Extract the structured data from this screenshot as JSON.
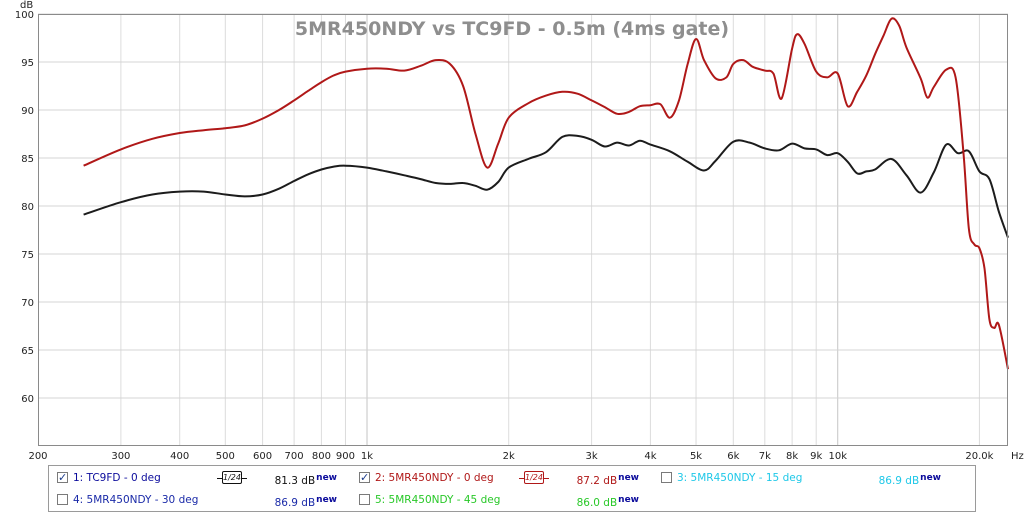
{
  "chart_data": {
    "type": "line",
    "title": "5MR450NDY vs TC9FD - 0.5m (4ms gate)",
    "ylabel": "dB",
    "xlabel": "Hz",
    "x_scale": "log",
    "xlim": [
      200,
      23000
    ],
    "ylim": [
      55,
      100
    ],
    "grid": true,
    "y_ticks": [
      60,
      65,
      70,
      75,
      80,
      85,
      90,
      95,
      100
    ],
    "x_ticks": [
      {
        "v": 200,
        "label": "200"
      },
      {
        "v": 300,
        "label": "300"
      },
      {
        "v": 400,
        "label": "400"
      },
      {
        "v": 500,
        "label": "500"
      },
      {
        "v": 600,
        "label": "600"
      },
      {
        "v": 700,
        "label": "700"
      },
      {
        "v": 800,
        "label": "800"
      },
      {
        "v": 900,
        "label": "900"
      },
      {
        "v": 1000,
        "label": "1k"
      },
      {
        "v": 2000,
        "label": "2k"
      },
      {
        "v": 3000,
        "label": "3k"
      },
      {
        "v": 4000,
        "label": "4k"
      },
      {
        "v": 5000,
        "label": "5k"
      },
      {
        "v": 6000,
        "label": "6k"
      },
      {
        "v": 7000,
        "label": "7k"
      },
      {
        "v": 8000,
        "label": "8k"
      },
      {
        "v": 9000,
        "label": "9k"
      },
      {
        "v": 10000,
        "label": "10k"
      },
      {
        "v": 20000,
        "label": "20.0k"
      }
    ],
    "series": [
      {
        "name": "1: TC9FD - 0 deg",
        "color": "#1c1c1c",
        "visible": true,
        "points": [
          [
            250,
            79.1
          ],
          [
            300,
            80.4
          ],
          [
            350,
            81.2
          ],
          [
            400,
            81.5
          ],
          [
            450,
            81.5
          ],
          [
            500,
            81.2
          ],
          [
            550,
            81.0
          ],
          [
            600,
            81.2
          ],
          [
            650,
            81.8
          ],
          [
            700,
            82.6
          ],
          [
            750,
            83.3
          ],
          [
            800,
            83.8
          ],
          [
            850,
            84.1
          ],
          [
            900,
            84.2
          ],
          [
            1000,
            84.0
          ],
          [
            1100,
            83.6
          ],
          [
            1200,
            83.2
          ],
          [
            1300,
            82.8
          ],
          [
            1400,
            82.4
          ],
          [
            1500,
            82.3
          ],
          [
            1600,
            82.4
          ],
          [
            1700,
            82.1
          ],
          [
            1800,
            81.7
          ],
          [
            1900,
            82.5
          ],
          [
            2000,
            84.0
          ],
          [
            2200,
            84.9
          ],
          [
            2400,
            85.6
          ],
          [
            2600,
            87.2
          ],
          [
            2800,
            87.3
          ],
          [
            3000,
            86.9
          ],
          [
            3200,
            86.2
          ],
          [
            3400,
            86.6
          ],
          [
            3600,
            86.3
          ],
          [
            3800,
            86.8
          ],
          [
            4000,
            86.4
          ],
          [
            4400,
            85.7
          ],
          [
            4800,
            84.6
          ],
          [
            5200,
            83.7
          ],
          [
            5500,
            84.7
          ],
          [
            6000,
            86.7
          ],
          [
            6500,
            86.6
          ],
          [
            7000,
            86.0
          ],
          [
            7500,
            85.8
          ],
          [
            8000,
            86.5
          ],
          [
            8500,
            86.0
          ],
          [
            9000,
            85.9
          ],
          [
            9500,
            85.3
          ],
          [
            10000,
            85.5
          ],
          [
            10500,
            84.6
          ],
          [
            11000,
            83.4
          ],
          [
            11500,
            83.6
          ],
          [
            12000,
            83.8
          ],
          [
            13000,
            84.9
          ],
          [
            14000,
            83.2
          ],
          [
            15000,
            81.4
          ],
          [
            16000,
            83.5
          ],
          [
            17000,
            86.4
          ],
          [
            18000,
            85.5
          ],
          [
            19000,
            85.7
          ],
          [
            20000,
            83.6
          ],
          [
            21000,
            82.8
          ],
          [
            22000,
            79.4
          ],
          [
            23000,
            76.7
          ]
        ]
      },
      {
        "name": "2: 5MR450NDY - 0 deg",
        "color": "#b01818",
        "visible": true,
        "points": [
          [
            250,
            84.2
          ],
          [
            300,
            85.9
          ],
          [
            350,
            87.0
          ],
          [
            400,
            87.6
          ],
          [
            450,
            87.9
          ],
          [
            500,
            88.1
          ],
          [
            550,
            88.4
          ],
          [
            600,
            89.1
          ],
          [
            650,
            90.0
          ],
          [
            700,
            91.0
          ],
          [
            750,
            92.0
          ],
          [
            800,
            92.9
          ],
          [
            850,
            93.6
          ],
          [
            900,
            94.0
          ],
          [
            1000,
            94.3
          ],
          [
            1100,
            94.3
          ],
          [
            1200,
            94.1
          ],
          [
            1300,
            94.6
          ],
          [
            1400,
            95.2
          ],
          [
            1500,
            94.8
          ],
          [
            1600,
            92.5
          ],
          [
            1700,
            87.5
          ],
          [
            1800,
            84.0
          ],
          [
            1900,
            86.5
          ],
          [
            2000,
            89.2
          ],
          [
            2200,
            90.7
          ],
          [
            2400,
            91.5
          ],
          [
            2600,
            91.9
          ],
          [
            2800,
            91.7
          ],
          [
            3000,
            91.0
          ],
          [
            3200,
            90.3
          ],
          [
            3400,
            89.6
          ],
          [
            3600,
            89.8
          ],
          [
            3800,
            90.4
          ],
          [
            4000,
            90.5
          ],
          [
            4200,
            90.6
          ],
          [
            4400,
            89.2
          ],
          [
            4600,
            91.0
          ],
          [
            4800,
            94.8
          ],
          [
            5000,
            97.4
          ],
          [
            5200,
            95.2
          ],
          [
            5500,
            93.3
          ],
          [
            5800,
            93.4
          ],
          [
            6000,
            94.8
          ],
          [
            6300,
            95.2
          ],
          [
            6600,
            94.5
          ],
          [
            7000,
            94.1
          ],
          [
            7300,
            93.8
          ],
          [
            7600,
            91.2
          ],
          [
            8000,
            96.4
          ],
          [
            8200,
            97.9
          ],
          [
            8500,
            96.9
          ],
          [
            9000,
            94.0
          ],
          [
            9500,
            93.4
          ],
          [
            10000,
            93.8
          ],
          [
            10500,
            90.4
          ],
          [
            11000,
            91.9
          ],
          [
            11500,
            93.6
          ],
          [
            12000,
            95.8
          ],
          [
            12500,
            97.7
          ],
          [
            13000,
            99.5
          ],
          [
            13500,
            98.8
          ],
          [
            14000,
            96.5
          ],
          [
            15000,
            93.3
          ],
          [
            15500,
            91.3
          ],
          [
            16000,
            92.4
          ],
          [
            17000,
            94.2
          ],
          [
            17800,
            93.4
          ],
          [
            18500,
            85.5
          ],
          [
            19000,
            77.6
          ],
          [
            19500,
            76.0
          ],
          [
            20000,
            75.6
          ],
          [
            20500,
            73.5
          ],
          [
            21000,
            68.2
          ],
          [
            21500,
            67.3
          ],
          [
            22000,
            67.6
          ],
          [
            23000,
            63.0
          ]
        ]
      },
      {
        "name": "3: 5MR450NDY - 15 deg",
        "color": "#1ec8e8",
        "visible": false,
        "points": []
      },
      {
        "name": "4: 5MR450NDY - 30 deg",
        "color": "#1a2aa8",
        "visible": false,
        "points": []
      },
      {
        "name": "5: 5MR450NDY - 45 deg",
        "color": "#28c828",
        "visible": false,
        "points": []
      }
    ]
  },
  "legend": {
    "entries": [
      {
        "name": "1: TC9FD - 0 deg",
        "checked": true,
        "smoothing": "1/24",
        "value": "81.3 dB",
        "badge": "new",
        "color": "#0c0c9c",
        "value_color": "#101010"
      },
      {
        "name": "2: 5MR450NDY - 0 deg",
        "checked": true,
        "smoothing": "1/24",
        "value": "87.2 dB",
        "badge": "new",
        "color": "#b01818",
        "value_color": "#b01818"
      },
      {
        "name": "3: 5MR450NDY - 15 deg",
        "checked": false,
        "smoothing": "",
        "value": "86.9 dB",
        "badge": "new",
        "color": "#1ec8e8",
        "value_color": "#1ec8e8"
      },
      {
        "name": "4: 5MR450NDY - 30 deg",
        "checked": false,
        "smoothing": "",
        "value": "86.9 dB",
        "badge": "new",
        "color": "#1a2aa8",
        "value_color": "#1a2aa8"
      },
      {
        "name": "5: 5MR450NDY - 45 deg",
        "checked": false,
        "smoothing": "",
        "value": "86.0 dB",
        "badge": "new",
        "color": "#28c828",
        "value_color": "#28c828"
      }
    ]
  }
}
